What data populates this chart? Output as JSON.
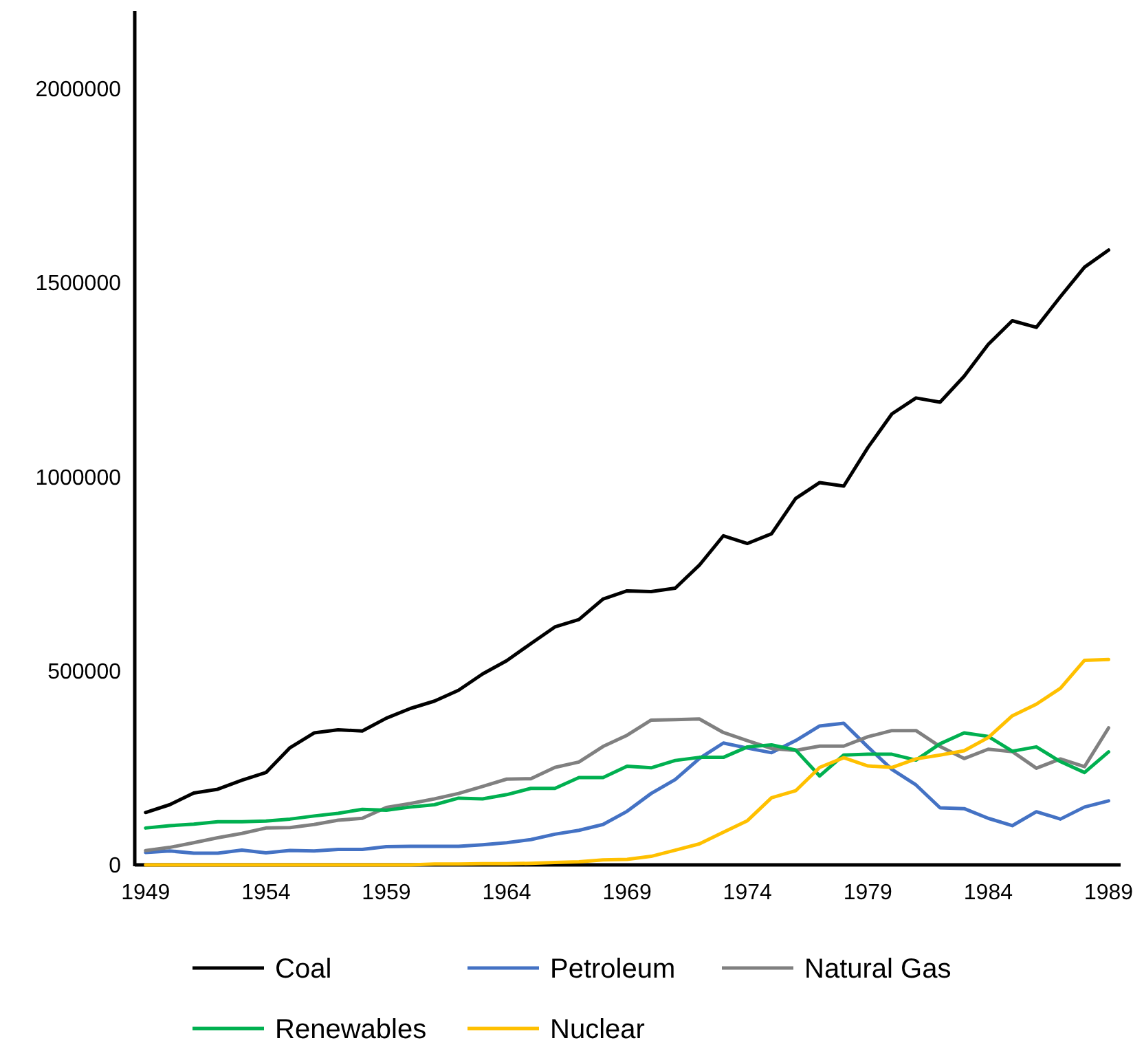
{
  "chart_data": {
    "type": "line",
    "x": [
      1949,
      1950,
      1951,
      1952,
      1953,
      1954,
      1955,
      1956,
      1957,
      1958,
      1959,
      1960,
      1961,
      1962,
      1963,
      1964,
      1965,
      1966,
      1967,
      1968,
      1969,
      1970,
      1971,
      1972,
      1973,
      1974,
      1975,
      1976,
      1977,
      1978,
      1979,
      1980,
      1981,
      1982,
      1983,
      1984,
      1985,
      1986,
      1987,
      1988,
      1989
    ],
    "series": [
      {
        "name": "Coal",
        "color": "#000000",
        "values": [
          135000,
          155000,
          185000,
          195000,
          218000,
          238000,
          302000,
          340000,
          348000,
          345000,
          378000,
          403000,
          422000,
          450000,
          492000,
          526000,
          570000,
          613000,
          632000,
          685000,
          706000,
          704000,
          713000,
          772000,
          848000,
          828000,
          853000,
          944000,
          985000,
          976000,
          1075000,
          1162000,
          1203000,
          1192000,
          1259000,
          1341000,
          1402000,
          1385000,
          1464000,
          1540000,
          1584000
        ]
      },
      {
        "name": "Petroleum",
        "color": "#4472c4",
        "values": [
          32000,
          36000,
          30000,
          30000,
          38000,
          31000,
          37000,
          36000,
          40000,
          40000,
          47000,
          48000,
          48000,
          48000,
          52000,
          57000,
          65000,
          79000,
          89000,
          104000,
          138000,
          184000,
          220000,
          274000,
          314000,
          301000,
          289000,
          320000,
          358000,
          365000,
          304000,
          246000,
          206000,
          147000,
          145000,
          120000,
          101000,
          137000,
          118000,
          149000,
          165000
        ]
      },
      {
        "name": "Natural Gas",
        "color": "#808080",
        "values": [
          37000,
          45000,
          57000,
          70000,
          81000,
          95000,
          96000,
          104000,
          115000,
          120000,
          148000,
          158000,
          170000,
          184000,
          202000,
          221000,
          222000,
          251000,
          265000,
          305000,
          334000,
          373000,
          374000,
          376000,
          341000,
          320000,
          300000,
          295000,
          306000,
          306000,
          330000,
          346000,
          346000,
          305000,
          274000,
          298000,
          292000,
          249000,
          273000,
          253000,
          353000
        ]
      },
      {
        "name": "Renewables",
        "color": "#00b050",
        "values": [
          95000,
          101000,
          105000,
          111000,
          111000,
          113000,
          118000,
          126000,
          133000,
          143000,
          141000,
          149000,
          155000,
          172000,
          170000,
          181000,
          197000,
          197000,
          225000,
          225000,
          254000,
          250000,
          269000,
          277000,
          277000,
          304000,
          309000,
          296000,
          229000,
          283000,
          285000,
          285000,
          270000,
          312000,
          340000,
          331000,
          293000,
          304000,
          266000,
          238000,
          291000
        ]
      },
      {
        "name": "Nuclear",
        "color": "#ffc000",
        "values": [
          0,
          0,
          0,
          0,
          0,
          0,
          0,
          0,
          0,
          0,
          0,
          0,
          2000,
          2000,
          3000,
          3000,
          4000,
          6000,
          8000,
          13000,
          14000,
          22000,
          38000,
          54000,
          84000,
          114000,
          173000,
          191000,
          251000,
          276000,
          255000,
          251000,
          273000,
          283000,
          294000,
          328000,
          384000,
          414000,
          455000,
          527000,
          529000
        ]
      }
    ],
    "xlim": [
      1948.55,
      1989.5
    ],
    "xticks": [
      1949,
      1954,
      1959,
      1964,
      1969,
      1974,
      1979,
      1984,
      1989
    ],
    "ylim": [
      0,
      2200000
    ],
    "yticks": [
      0,
      500000,
      1000000,
      1500000,
      2000000
    ],
    "legend": "bottom",
    "line_style": "solid",
    "marker": "none"
  }
}
